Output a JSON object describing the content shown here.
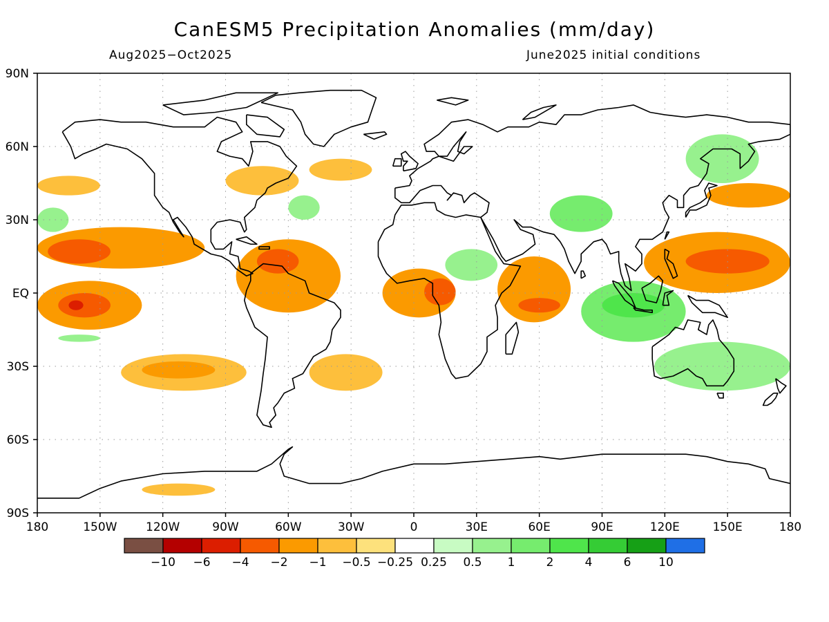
{
  "title": "CanESM5 Precipitation Anomalies (mm/day)",
  "subtitle_left": "Aug2025−Oct2025",
  "subtitle_right": "June2025 initial conditions",
  "map": {
    "projection": "equirectangular",
    "lon_range": [
      -180,
      180
    ],
    "lat_range": [
      -90,
      90
    ],
    "grid": "dotted",
    "lat_ticks": [
      {
        "value": 90,
        "label": "90N"
      },
      {
        "value": 60,
        "label": "60N"
      },
      {
        "value": 30,
        "label": "30N"
      },
      {
        "value": 0,
        "label": "EQ"
      },
      {
        "value": -30,
        "label": "30S"
      },
      {
        "value": -60,
        "label": "60S"
      },
      {
        "value": -90,
        "label": "90S"
      }
    ],
    "lon_ticks": [
      {
        "value": -180,
        "label": "180"
      },
      {
        "value": -150,
        "label": "150W"
      },
      {
        "value": -120,
        "label": "120W"
      },
      {
        "value": -90,
        "label": "90W"
      },
      {
        "value": -60,
        "label": "60W"
      },
      {
        "value": -30,
        "label": "30W"
      },
      {
        "value": 0,
        "label": "0"
      },
      {
        "value": 30,
        "label": "30E"
      },
      {
        "value": 60,
        "label": "60E"
      },
      {
        "value": 90,
        "label": "90E"
      },
      {
        "value": 120,
        "label": "120E"
      },
      {
        "value": 150,
        "label": "150E"
      },
      {
        "value": 180,
        "label": "180"
      }
    ]
  },
  "colorbar": {
    "colors": [
      "#7a4f43",
      "#b40000",
      "#dc1e00",
      "#f65a00",
      "#fb9a00",
      "#fdbf3c",
      "#fde17c",
      "#ffffff",
      "#c8fbc3",
      "#97f18e",
      "#76ec6e",
      "#4fe54b",
      "#35cc35",
      "#16a016",
      "#1f6fe6"
    ],
    "labels": [
      "−10",
      "−6",
      "−4",
      "−2",
      "−1",
      "−0.5",
      "−0.25",
      "0.25",
      "0.5",
      "1",
      "2",
      "4",
      "6",
      "10"
    ]
  },
  "anomaly_regions": [
    {
      "level": -1,
      "lon": [
        -180,
        -100
      ],
      "lat": [
        10,
        27
      ]
    },
    {
      "level": -2,
      "lon": [
        -175,
        -145
      ],
      "lat": [
        12,
        22
      ]
    },
    {
      "level": -1,
      "lon": [
        -180,
        -130
      ],
      "lat": [
        -15,
        5
      ]
    },
    {
      "level": -2,
      "lon": [
        -170,
        -145
      ],
      "lat": [
        -10,
        0
      ]
    },
    {
      "level": -4,
      "lon": [
        -165,
        -158
      ],
      "lat": [
        -7,
        -3
      ]
    },
    {
      "level": -0.5,
      "lon": [
        -180,
        -150
      ],
      "lat": [
        40,
        48
      ]
    },
    {
      "level": -0.5,
      "lon": [
        -140,
        -80
      ],
      "lat": [
        -40,
        -25
      ]
    },
    {
      "level": -1,
      "lon": [
        -130,
        -95
      ],
      "lat": [
        -35,
        -28
      ]
    },
    {
      "level": -1,
      "lon": [
        -85,
        -35
      ],
      "lat": [
        -8,
        22
      ]
    },
    {
      "level": -2,
      "lon": [
        -75,
        -55
      ],
      "lat": [
        8,
        18
      ]
    },
    {
      "level": -0.5,
      "lon": [
        -90,
        -55
      ],
      "lat": [
        40,
        52
      ]
    },
    {
      "level": -0.5,
      "lon": [
        -50,
        -20
      ],
      "lat": [
        46,
        55
      ]
    },
    {
      "level": -0.5,
      "lon": [
        -50,
        -15
      ],
      "lat": [
        -40,
        -25
      ]
    },
    {
      "level": -1,
      "lon": [
        -15,
        20
      ],
      "lat": [
        -10,
        10
      ]
    },
    {
      "level": -2,
      "lon": [
        5,
        20
      ],
      "lat": [
        -5,
        6
      ]
    },
    {
      "level": -1,
      "lon": [
        40,
        75
      ],
      "lat": [
        -12,
        15
      ]
    },
    {
      "level": -2,
      "lon": [
        50,
        70
      ],
      "lat": [
        -8,
        -2
      ]
    },
    {
      "level": -1,
      "lon": [
        110,
        180
      ],
      "lat": [
        0,
        25
      ]
    },
    {
      "level": -2,
      "lon": [
        130,
        170
      ],
      "lat": [
        8,
        18
      ]
    },
    {
      "level": -1,
      "lon": [
        140,
        180
      ],
      "lat": [
        35,
        45
      ]
    },
    {
      "level": -0.5,
      "lon": [
        -130,
        -95
      ],
      "lat": [
        -83,
        -78
      ]
    },
    {
      "level": 0.5,
      "lon": [
        15,
        40
      ],
      "lat": [
        5,
        18
      ]
    },
    {
      "level": 1,
      "lon": [
        80,
        130
      ],
      "lat": [
        -20,
        5
      ]
    },
    {
      "level": 2,
      "lon": [
        90,
        120
      ],
      "lat": [
        -10,
        0
      ]
    },
    {
      "level": 1,
      "lon": [
        65,
        95
      ],
      "lat": [
        25,
        40
      ]
    },
    {
      "level": 0.5,
      "lon": [
        115,
        180
      ],
      "lat": [
        -40,
        -20
      ]
    },
    {
      "level": 0.5,
      "lon": [
        130,
        165
      ],
      "lat": [
        45,
        65
      ]
    },
    {
      "level": 0.5,
      "lon": [
        -180,
        -165
      ],
      "lat": [
        25,
        35
      ]
    },
    {
      "level": 0.5,
      "lon": [
        -170,
        -150
      ],
      "lat": [
        -20,
        -17
      ]
    },
    {
      "level": 0.5,
      "lon": [
        -60,
        -45
      ],
      "lat": [
        30,
        40
      ]
    }
  ]
}
